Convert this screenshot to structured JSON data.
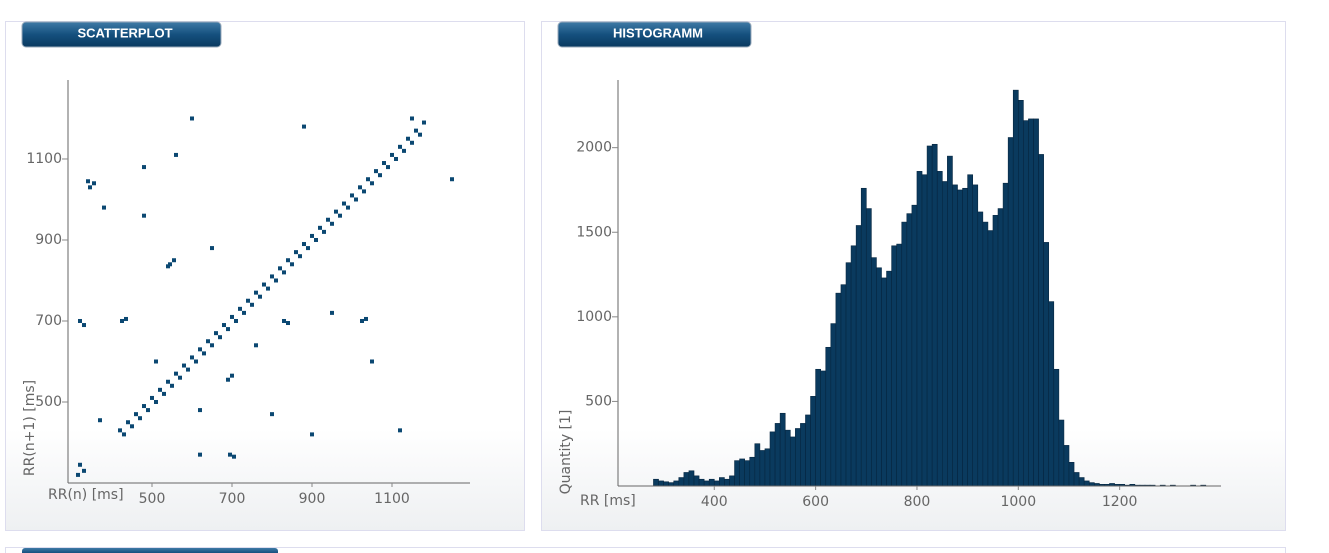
{
  "chart_data": [
    {
      "type": "scatter",
      "title": "SCATTERPLOT",
      "x_label": "RR(n) [ms]",
      "y_label": "RR(n+1) [ms]",
      "color": "#0b4872",
      "xlim": [
        290,
        1295
      ],
      "ylim": [
        300,
        1295
      ],
      "xticks": [
        500,
        700,
        900,
        1100
      ],
      "yticks": [
        500,
        700,
        900,
        1100
      ],
      "x": [
        420,
        440,
        460,
        480,
        500,
        520,
        540,
        560,
        580,
        600,
        620,
        640,
        660,
        680,
        700,
        720,
        740,
        760,
        780,
        800,
        820,
        840,
        860,
        880,
        900,
        920,
        940,
        960,
        980,
        1000,
        1020,
        1040,
        1060,
        1080,
        1100,
        1120,
        1140,
        1160,
        1180,
        430,
        450,
        470,
        490,
        510,
        530,
        550,
        570,
        590,
        610,
        630,
        650,
        670,
        690,
        710,
        730,
        750,
        770,
        790,
        810,
        830,
        850,
        870,
        890,
        910,
        930,
        950,
        970,
        990,
        1010,
        1030,
        1050,
        1070,
        1090,
        1110,
        1130,
        1150,
        1170,
        345,
        355,
        340,
        545,
        555,
        540,
        320,
        330,
        425,
        435,
        690,
        700,
        830,
        840,
        1025,
        1035,
        620,
        695,
        705,
        320,
        330,
        315,
        1120,
        370,
        560,
        600,
        880,
        480,
        650,
        760,
        950,
        1050,
        480,
        800,
        900,
        1150,
        1250,
        380,
        510,
        620
      ],
      "y": [
        430,
        450,
        470,
        490,
        510,
        530,
        550,
        570,
        590,
        610,
        630,
        650,
        670,
        690,
        710,
        730,
        750,
        770,
        790,
        810,
        830,
        850,
        870,
        890,
        910,
        930,
        950,
        970,
        990,
        1010,
        1030,
        1050,
        1070,
        1090,
        1110,
        1130,
        1150,
        1170,
        1190,
        420,
        440,
        460,
        480,
        500,
        520,
        540,
        560,
        580,
        600,
        620,
        640,
        660,
        680,
        700,
        720,
        740,
        760,
        780,
        800,
        820,
        840,
        860,
        880,
        900,
        920,
        940,
        960,
        980,
        1000,
        1020,
        1040,
        1060,
        1080,
        1100,
        1120,
        1140,
        1160,
        1030,
        1040,
        1045,
        840,
        850,
        835,
        700,
        690,
        700,
        705,
        555,
        565,
        700,
        695,
        700,
        705,
        370,
        370,
        365,
        345,
        330,
        320,
        430,
        455,
        1110,
        1200,
        1180,
        960,
        880,
        640,
        720,
        600,
        1080,
        470,
        420,
        1200,
        1050,
        980,
        600,
        480
      ]
    },
    {
      "type": "histogram",
      "title": "HISTOGRAMM",
      "x_label": "RR [ms]",
      "y_label": "Quantity [1]",
      "color": "#0a3a5e",
      "xlim": [
        210,
        1400
      ],
      "ylim": [
        0,
        2400
      ],
      "xticks": [
        400,
        600,
        800,
        1000,
        1200
      ],
      "yticks": [
        500,
        1000,
        1500,
        2000
      ],
      "bins": [
        280,
        290,
        300,
        310,
        320,
        330,
        340,
        350,
        360,
        370,
        380,
        390,
        400,
        410,
        420,
        430,
        440,
        450,
        460,
        470,
        480,
        490,
        500,
        510,
        520,
        530,
        540,
        550,
        560,
        570,
        580,
        590,
        600,
        610,
        620,
        630,
        640,
        650,
        660,
        670,
        680,
        690,
        700,
        710,
        720,
        730,
        740,
        750,
        760,
        770,
        780,
        790,
        800,
        810,
        820,
        830,
        840,
        850,
        860,
        870,
        880,
        890,
        900,
        910,
        920,
        930,
        940,
        950,
        960,
        970,
        980,
        990,
        1000,
        1010,
        1020,
        1030,
        1040,
        1050,
        1060,
        1070,
        1080,
        1090,
        1100,
        1110,
        1120,
        1130,
        1140,
        1150,
        1160,
        1170,
        1180,
        1190,
        1200,
        1210,
        1220,
        1230,
        1240,
        1250,
        1260,
        1270,
        1280,
        1290,
        1300,
        1310,
        1320,
        1330,
        1340,
        1350,
        1360,
        1370,
        1380
      ],
      "values": [
        40,
        30,
        25,
        20,
        30,
        50,
        80,
        90,
        60,
        40,
        30,
        40,
        30,
        50,
        40,
        60,
        150,
        160,
        150,
        170,
        250,
        210,
        220,
        320,
        370,
        430,
        330,
        290,
        340,
        370,
        420,
        530,
        690,
        680,
        820,
        960,
        1140,
        1190,
        1320,
        1420,
        1540,
        1760,
        1640,
        1350,
        1290,
        1230,
        1270,
        1420,
        1430,
        1560,
        1610,
        1660,
        1860,
        1840,
        2010,
        2020,
        1860,
        1800,
        1950,
        1780,
        1750,
        1760,
        1840,
        1780,
        1620,
        1560,
        1510,
        1600,
        1640,
        1790,
        2060,
        2340,
        2280,
        2160,
        2170,
        2170,
        1960,
        1440,
        1090,
        690,
        390,
        240,
        140,
        80,
        50,
        30,
        20,
        15,
        10,
        10,
        15,
        10,
        10,
        5,
        10,
        5,
        5,
        5,
        5,
        0,
        5,
        0,
        5,
        0,
        0,
        0,
        5,
        0,
        5,
        0
      ]
    }
  ]
}
